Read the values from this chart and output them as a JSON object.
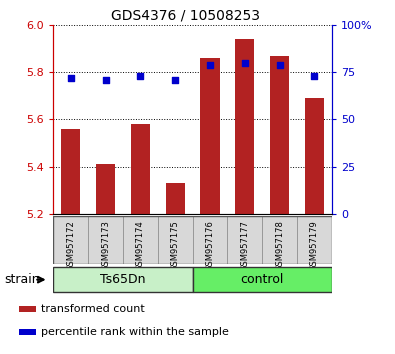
{
  "title": "GDS4376 / 10508253",
  "samples": [
    "GSM957172",
    "GSM957173",
    "GSM957174",
    "GSM957175",
    "GSM957176",
    "GSM957177",
    "GSM957178",
    "GSM957179"
  ],
  "transformed_count": [
    5.56,
    5.41,
    5.58,
    5.33,
    5.86,
    5.94,
    5.87,
    5.69
  ],
  "percentile_rank": [
    72,
    71,
    73,
    71,
    79,
    80,
    79,
    73
  ],
  "ylim_left": [
    5.2,
    6.0
  ],
  "ylim_right": [
    0,
    100
  ],
  "yticks_left": [
    5.2,
    5.4,
    5.6,
    5.8,
    6.0
  ],
  "yticks_right": [
    0,
    25,
    50,
    75,
    100
  ],
  "ytick_labels_right": [
    "0",
    "25",
    "50",
    "75",
    "100%"
  ],
  "bar_color": "#b22222",
  "dot_color": "#0000cc",
  "bar_bottom": 5.2,
  "group_ts_color": "#c8f0c8",
  "group_ctrl_color": "#66ee66",
  "group_ts_label": "Ts65Dn",
  "group_ctrl_label": "control",
  "strain_label": "strain",
  "legend_items": [
    {
      "label": "transformed count",
      "color": "#b22222"
    },
    {
      "label": "percentile rank within the sample",
      "color": "#0000cc"
    }
  ],
  "sample_box_color": "#d8d8d8",
  "plot_bg": "#ffffff",
  "tick_color_left": "#cc0000",
  "tick_color_right": "#0000cc",
  "title_fontsize": 10,
  "axis_fontsize": 8,
  "sample_fontsize": 6,
  "legend_fontsize": 8,
  "group_fontsize": 9
}
